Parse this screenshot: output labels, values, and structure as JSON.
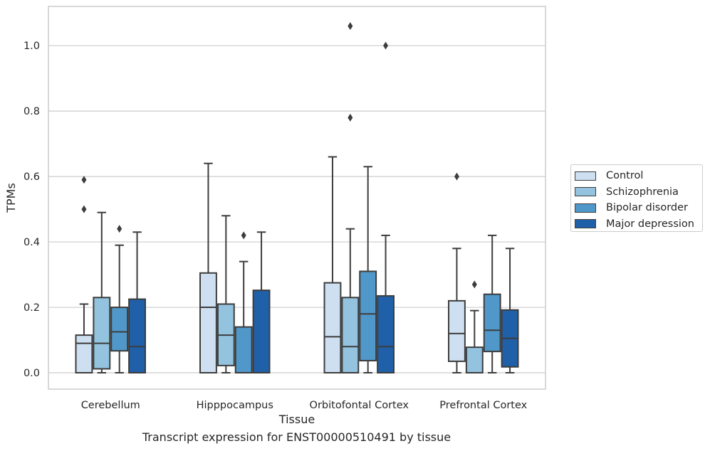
{
  "caption": "Transcript expression for ENST00000510491 by tissue",
  "chart_data": {
    "type": "box",
    "xlabel": "Tissue",
    "ylabel": "TPMs",
    "ylim": [
      -0.05,
      1.12
    ],
    "yticks": [
      0.0,
      0.2,
      0.4,
      0.6,
      0.8,
      1.0
    ],
    "ytick_labels": [
      "0.0",
      "0.2",
      "0.4",
      "0.6",
      "0.8",
      "1.0"
    ],
    "grid": "horizontal",
    "legend_position": "right",
    "categories": [
      "Cerebellum",
      "Hipppocampus",
      "Orbitofontal Cortex",
      "Prefrontal Cortex"
    ],
    "series": [
      {
        "name": "Control",
        "color": "#cddff0",
        "boxes": [
          {
            "whislo": 0.0,
            "q1": 0.0,
            "med": 0.09,
            "q3": 0.115,
            "whishi": 0.21,
            "fliers": [
              0.5,
              0.59
            ]
          },
          {
            "whislo": 0.0,
            "q1": 0.0,
            "med": 0.2,
            "q3": 0.305,
            "whishi": 0.64,
            "fliers": []
          },
          {
            "whislo": 0.0,
            "q1": 0.0,
            "med": 0.11,
            "q3": 0.275,
            "whishi": 0.66,
            "fliers": []
          },
          {
            "whislo": 0.0,
            "q1": 0.035,
            "med": 0.12,
            "q3": 0.22,
            "whishi": 0.38,
            "fliers": [
              0.6
            ]
          }
        ]
      },
      {
        "name": "Schizophrenia",
        "color": "#93c3df",
        "boxes": [
          {
            "whislo": 0.0,
            "q1": 0.012,
            "med": 0.09,
            "q3": 0.23,
            "whishi": 0.49,
            "fliers": []
          },
          {
            "whislo": 0.0,
            "q1": 0.022,
            "med": 0.115,
            "q3": 0.21,
            "whishi": 0.48,
            "fliers": []
          },
          {
            "whislo": 0.0,
            "q1": 0.0,
            "med": 0.08,
            "q3": 0.23,
            "whishi": 0.44,
            "fliers": [
              0.78,
              1.06
            ]
          },
          {
            "whislo": 0.0,
            "q1": 0.0,
            "med": 0.0,
            "q3": 0.078,
            "whishi": 0.19,
            "fliers": [
              0.27
            ]
          }
        ]
      },
      {
        "name": "Bipolar disorder",
        "color": "#5098c9",
        "boxes": [
          {
            "whislo": 0.0,
            "q1": 0.067,
            "med": 0.125,
            "q3": 0.2,
            "whishi": 0.39,
            "fliers": [
              0.44
            ]
          },
          {
            "whislo": 0.0,
            "q1": 0.0,
            "med": 0.0,
            "q3": 0.14,
            "whishi": 0.34,
            "fliers": [
              0.42
            ]
          },
          {
            "whislo": 0.0,
            "q1": 0.037,
            "med": 0.18,
            "q3": 0.31,
            "whishi": 0.63,
            "fliers": []
          },
          {
            "whislo": 0.0,
            "q1": 0.065,
            "med": 0.13,
            "q3": 0.24,
            "whishi": 0.42,
            "fliers": []
          }
        ]
      },
      {
        "name": "Major depression",
        "color": "#2060a8",
        "boxes": [
          {
            "whislo": 0.0,
            "q1": 0.0,
            "med": 0.08,
            "q3": 0.225,
            "whishi": 0.43,
            "fliers": []
          },
          {
            "whislo": 0.0,
            "q1": 0.0,
            "med": 0.0,
            "q3": 0.252,
            "whishi": 0.43,
            "fliers": []
          },
          {
            "whislo": 0.0,
            "q1": 0.0,
            "med": 0.08,
            "q3": 0.235,
            "whishi": 0.42,
            "fliers": [
              1.0
            ]
          },
          {
            "whislo": 0.0,
            "q1": 0.018,
            "med": 0.105,
            "q3": 0.192,
            "whishi": 0.38,
            "fliers": []
          }
        ]
      }
    ]
  }
}
